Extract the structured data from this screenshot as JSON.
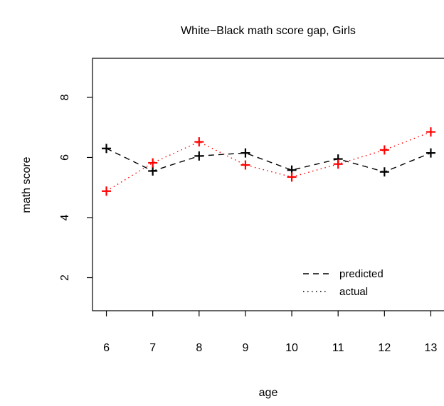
{
  "chart_data": {
    "type": "line",
    "title": "White−Black math score gap, Girls",
    "xlabel": "age",
    "ylabel": "math score",
    "x": [
      6,
      7,
      8,
      9,
      10,
      11,
      12,
      13
    ],
    "xlim": [
      5.7,
      13.3
    ],
    "ylim": [
      0.9,
      9.3
    ],
    "x_ticks": [
      "6",
      "7",
      "8",
      "9",
      "10",
      "11",
      "12",
      "13"
    ],
    "y_ticks": [
      "2",
      "4",
      "6",
      "8"
    ],
    "grid": false,
    "legend_position": "bottom-right",
    "series": [
      {
        "name": "predicted",
        "values": [
          6.3,
          5.55,
          6.05,
          6.15,
          5.58,
          5.95,
          5.52,
          6.15
        ],
        "color": "#000000",
        "line_style": "dashed",
        "marker": "plus"
      },
      {
        "name": "actual",
        "values": [
          4.88,
          5.82,
          6.52,
          5.75,
          5.35,
          5.78,
          6.25,
          6.85
        ],
        "color": "#ff0000",
        "line_style": "dotted",
        "marker": "plus"
      }
    ]
  }
}
